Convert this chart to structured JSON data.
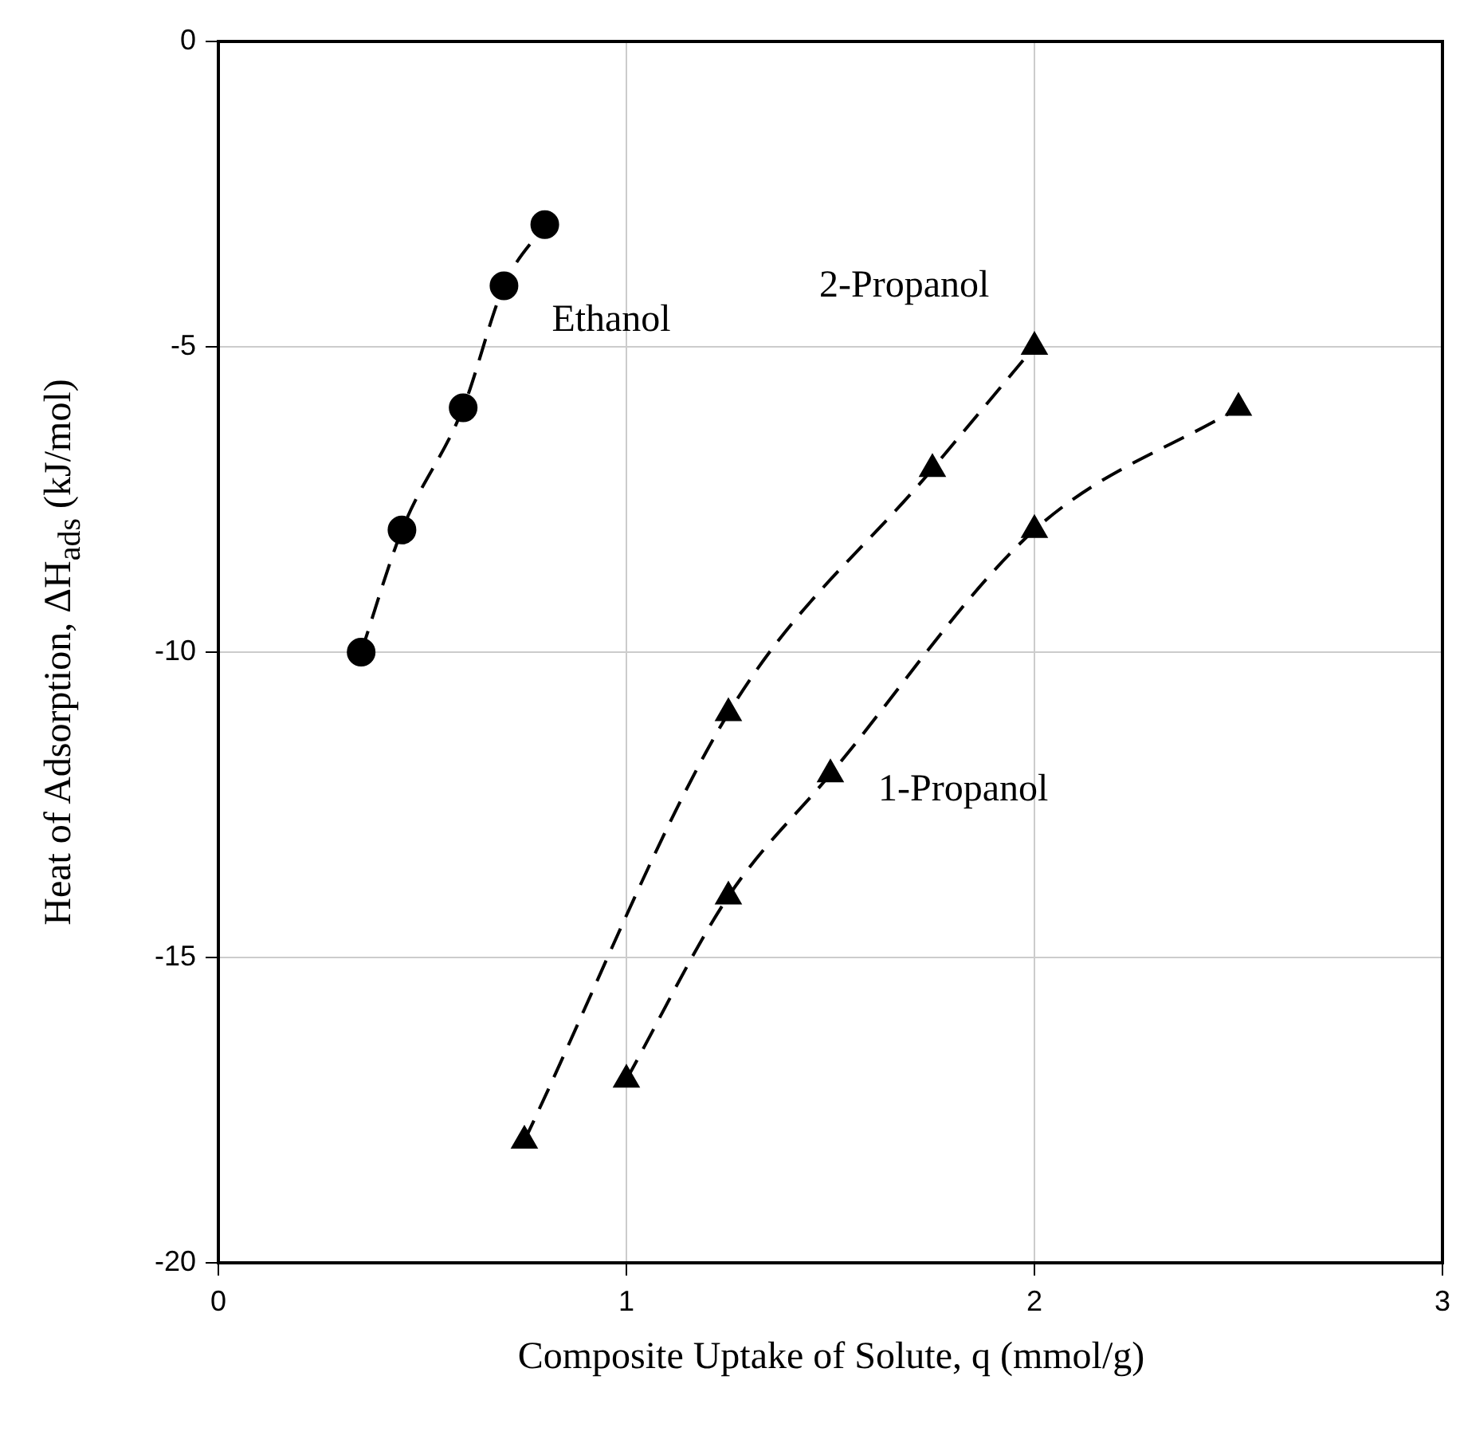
{
  "chart_data": {
    "type": "line",
    "xlabel": "Composite Uptake of Solute, q (mmol/g)",
    "ylabel": "Heat of Adsorption, ΔH$_{ads}$ (kJ/mol)",
    "xlim": [
      0,
      3
    ],
    "xticks": [
      0,
      1,
      2,
      3
    ],
    "ylim": [
      -20,
      0
    ],
    "yticks": [
      -20,
      -15,
      -10,
      -5,
      0
    ],
    "grid": true,
    "legend": false,
    "line_style": "dashed",
    "series": [
      {
        "name": "Ethanol",
        "color": "#000000",
        "marker": "circle",
        "x": [
          0.35,
          0.45,
          0.6,
          0.7,
          0.8
        ],
        "values": [
          -10,
          -8,
          -6,
          -4,
          -3
        ]
      },
      {
        "name": "2-Propanol",
        "color": "#000000",
        "marker": "triangle",
        "x": [
          0.75,
          1.25,
          1.75,
          2.0
        ],
        "values": [
          -18,
          -11,
          -7,
          -5
        ]
      },
      {
        "name": "1-Propanol",
        "color": "#000000",
        "marker": "triangle",
        "x": [
          1.0,
          1.25,
          1.5,
          2.0,
          2.5
        ],
        "values": [
          -17,
          -14,
          -12,
          -8,
          -6
        ]
      }
    ]
  }
}
